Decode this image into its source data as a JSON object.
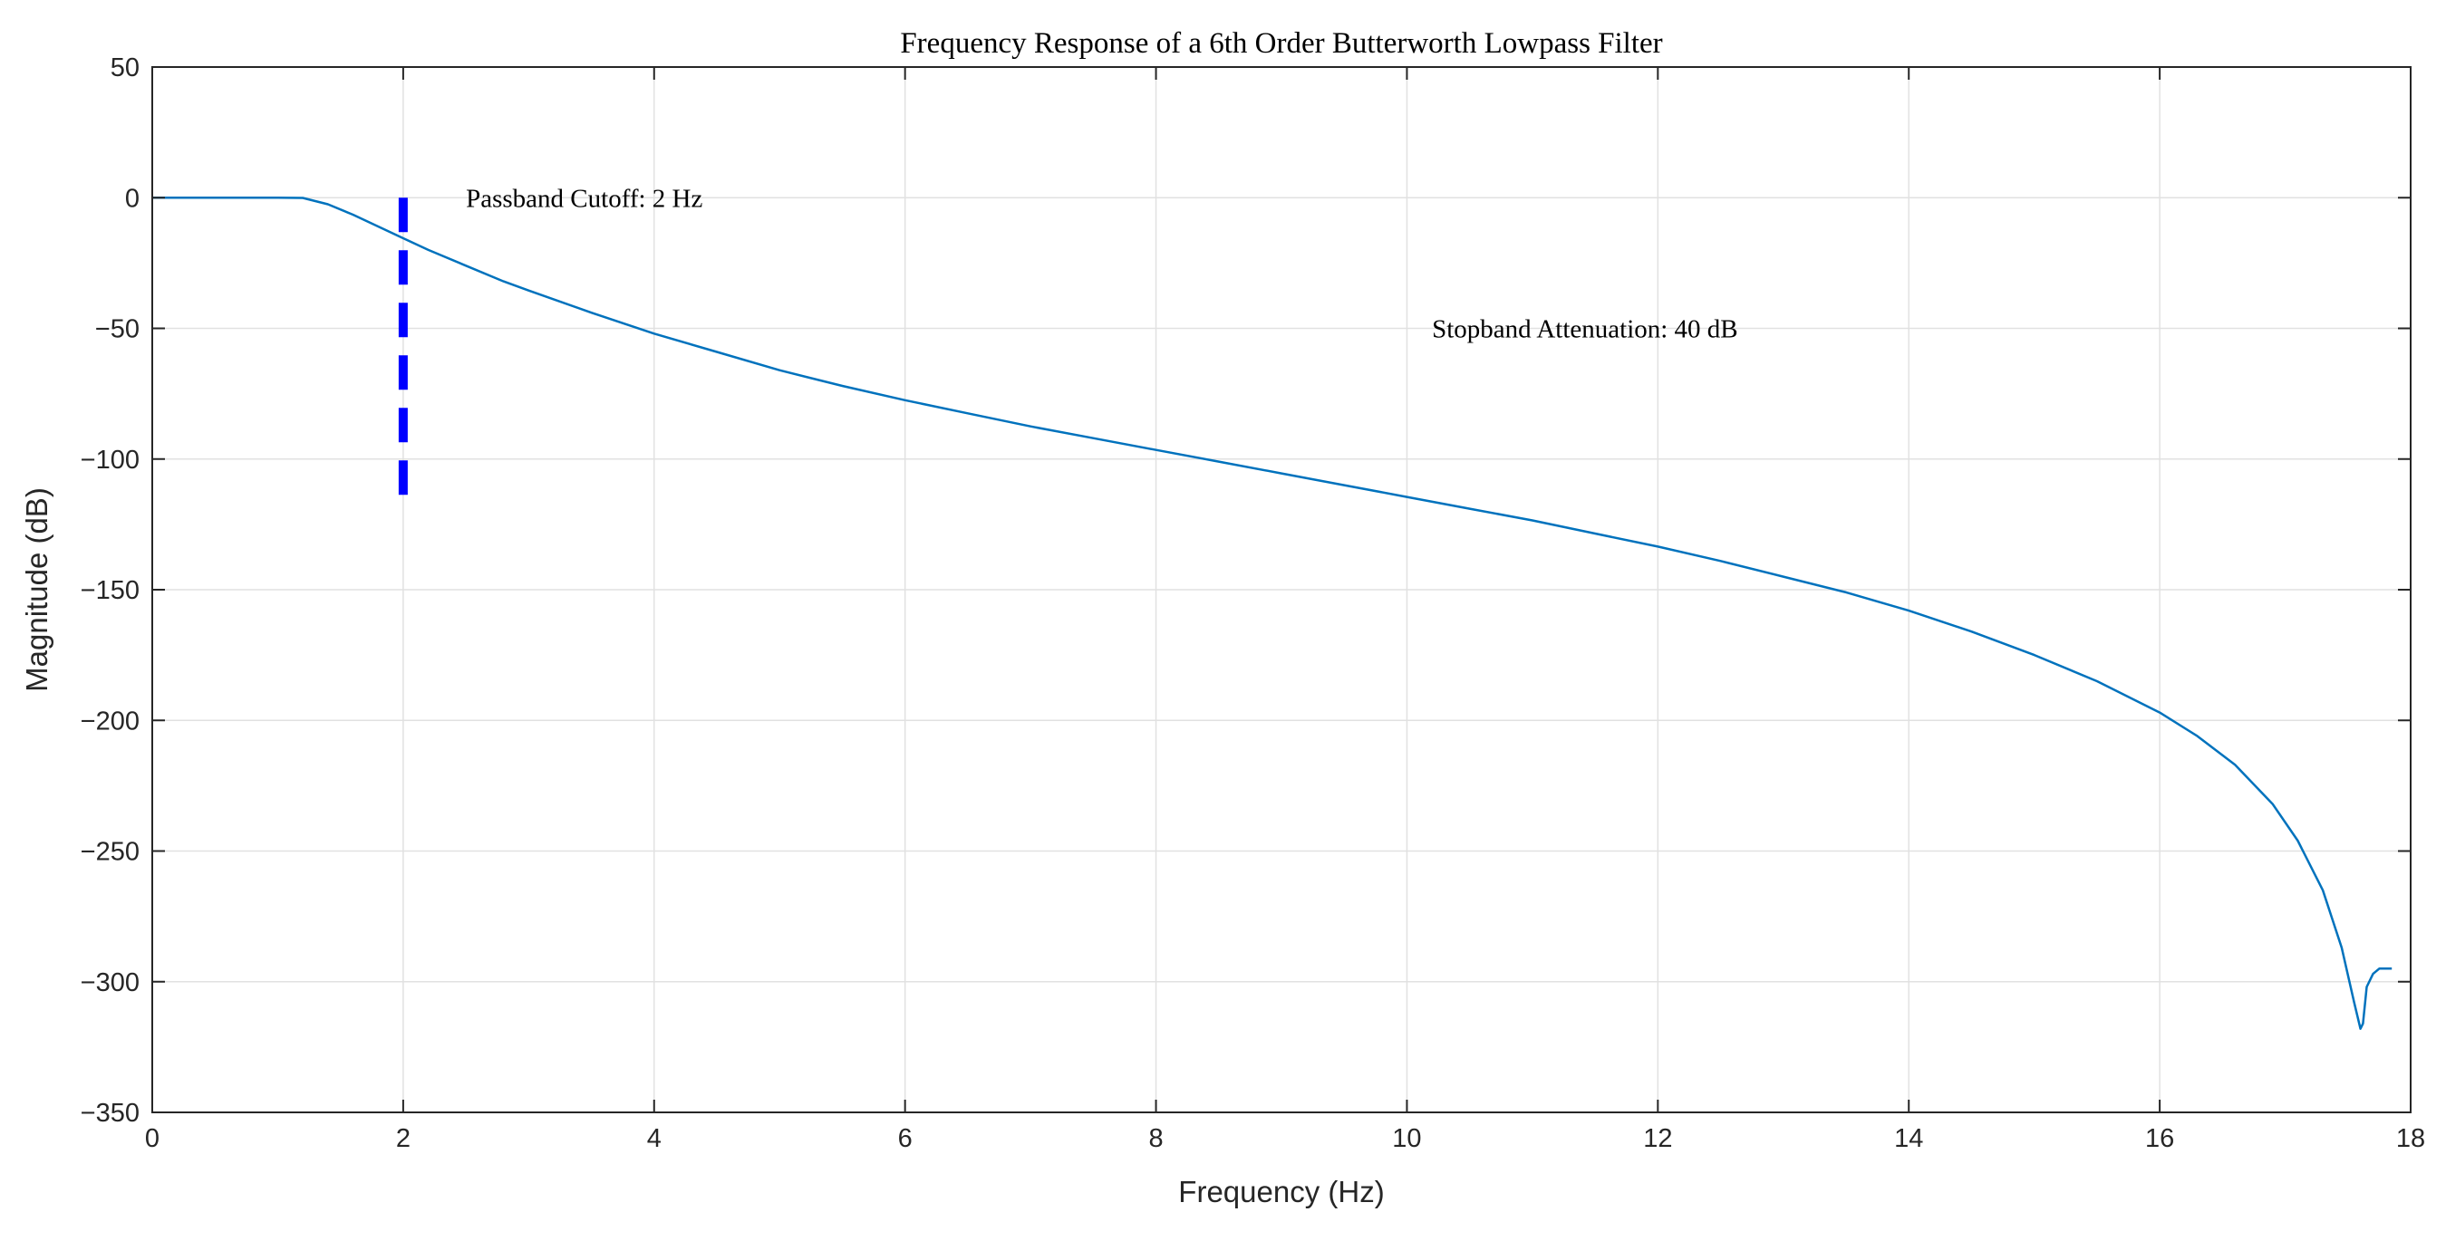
{
  "chart_data": {
    "type": "line",
    "title": "Frequency Response of a 6th Order Butterworth Lowpass Filter",
    "xlabel": "Frequency (Hz)",
    "ylabel": "Magnitude (dB)",
    "xlim": [
      0,
      18
    ],
    "ylim": [
      -350,
      50
    ],
    "grid": true,
    "x_ticks": [
      0,
      2,
      4,
      6,
      8,
      10,
      12,
      14,
      16,
      18
    ],
    "x_tick_labels": [
      "0",
      "2",
      "4",
      "6",
      "8",
      "10",
      "12",
      "14",
      "16",
      "18"
    ],
    "y_ticks": [
      50,
      0,
      -50,
      -100,
      -150,
      -200,
      -250,
      -300,
      -350
    ],
    "y_tick_labels": [
      "50",
      "0",
      "−50",
      "−100",
      "−150",
      "−200",
      "−250",
      "−300",
      "−350"
    ],
    "series": [
      {
        "color": "#0072BD",
        "x": [
          0,
          0.5,
          1.0,
          1.2,
          1.4,
          1.6,
          1.8,
          2.0,
          2.2,
          2.5,
          2.8,
          3.0,
          3.5,
          4.0,
          4.5,
          5.0,
          5.5,
          6.0,
          6.5,
          7.0,
          7.5,
          8.0,
          8.5,
          9.0,
          9.5,
          10.0,
          10.5,
          11.0,
          11.5,
          12.0,
          12.5,
          13.0,
          13.5,
          14.0,
          14.5,
          15.0,
          15.5,
          16.0,
          16.3,
          16.6,
          16.9,
          17.1,
          17.3,
          17.45,
          17.55,
          17.6,
          17.62,
          17.65,
          17.7,
          17.75,
          17.85
        ],
        "y": [
          0,
          0,
          0,
          -0.1,
          -2.5,
          -6.5,
          -11,
          -15.5,
          -20,
          -26,
          -32,
          -35.5,
          -44,
          -52,
          -59,
          -66,
          -72,
          -77.5,
          -82.5,
          -87.5,
          -92,
          -96.5,
          -101,
          -105.5,
          -110,
          -114.5,
          -119,
          -123.5,
          -128.5,
          -133.5,
          -139,
          -145,
          -151,
          -158,
          -166,
          -175,
          -185,
          -197,
          -206,
          -217,
          -232,
          -246,
          -265,
          -287,
          -308,
          -318,
          -316,
          -302,
          -297,
          -295,
          -295
        ]
      }
    ],
    "cutoff_marker": {
      "x": 2,
      "y_from": 0,
      "y_to": -120,
      "color": "#0000FF",
      "style": "dashed"
    },
    "annotations": [
      {
        "text": "Passband Cutoff: 2 Hz",
        "x": 2.5,
        "y": 0
      },
      {
        "text": "Stopband Attenuation: 40 dB",
        "x": 10.2,
        "y": -50
      }
    ]
  }
}
